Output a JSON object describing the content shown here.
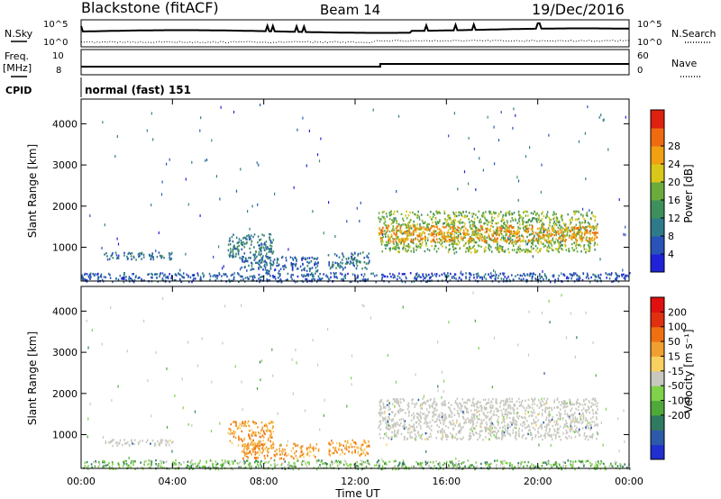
{
  "header": {
    "station": "Blackstone (fitACF)",
    "beam": "Beam 14",
    "date": "19/Dec/2016"
  },
  "status_panels": {
    "nsky_label": "N.Sky",
    "nsearch_label": "N.Search",
    "noise_ticks": [
      "10^5",
      "10^0"
    ],
    "freq_label_line1": "Freq.",
    "freq_label_line2": "[MHz]",
    "freq_ticks": [
      "10",
      "8"
    ],
    "nave_label": "Nave",
    "nave_ticks": [
      "60",
      "0"
    ],
    "cpid_label": "CPID",
    "cpid_value": "normal (fast) 151"
  },
  "chart_data": [
    {
      "type": "heatmap",
      "name": "power",
      "ylabel": "Slant Range [km]",
      "xlabel": "",
      "xlim": [
        0,
        24
      ],
      "ylim": [
        180,
        4600
      ],
      "yticks": [
        1000,
        2000,
        3000,
        4000
      ],
      "xticks": [
        0,
        4,
        8,
        12,
        16,
        20,
        24
      ],
      "colorbar_label": "Power [dB]",
      "colorbar_range": [
        0,
        32
      ],
      "colorbar_ticks": [
        "4",
        "8",
        "12",
        "16",
        "20",
        "24",
        "28"
      ],
      "colorbar_colors": [
        "#1f22d8",
        "#2a53b8",
        "#2f7a8a",
        "#3f8f5c",
        "#6aab3c",
        "#d8c81a",
        "#f0a010",
        "#f06a10",
        "#e02010"
      ],
      "echo_regions": [
        {
          "t0": 0.0,
          "t1": 24.0,
          "r0": 180,
          "r1": 400,
          "level": 6
        },
        {
          "t0": 1.0,
          "t1": 4.0,
          "r0": 720,
          "r1": 900,
          "level": 8
        },
        {
          "t0": 6.4,
          "t1": 8.4,
          "r0": 750,
          "r1": 1350,
          "level": 10
        },
        {
          "t0": 7.0,
          "t1": 10.4,
          "r0": 430,
          "r1": 800,
          "level": 7
        },
        {
          "t0": 10.8,
          "t1": 12.6,
          "r0": 500,
          "r1": 900,
          "level": 8
        },
        {
          "t0": 13.0,
          "t1": 22.6,
          "r0": 900,
          "r1": 1900,
          "level": 16
        },
        {
          "t0": 13.0,
          "t1": 22.6,
          "r0": 1150,
          "r1": 1550,
          "level": 24
        }
      ]
    },
    {
      "type": "heatmap",
      "name": "velocity",
      "ylabel": "Slant Range [km]",
      "xlabel": "Time UT",
      "xlim": [
        0,
        24
      ],
      "ylim": [
        180,
        4600
      ],
      "yticks": [
        1000,
        2000,
        3000,
        4000
      ],
      "xticks": [
        0,
        4,
        8,
        12,
        16,
        20,
        24
      ],
      "xticklabels": [
        "00:00",
        "04:00",
        "08:00",
        "12:00",
        "16:00",
        "20:00",
        "00:00"
      ],
      "colorbar_label": "Velocity [m s⁻¹]",
      "colorbar_ticks": [
        "200",
        "100",
        "50",
        "15",
        "-15",
        "-50",
        "-100",
        "-200"
      ],
      "colorbar_colors": [
        "#1f2fd0",
        "#2d5aa8",
        "#2f7a60",
        "#4fa83a",
        "#7fd24a",
        "#c8c8c0",
        "#f8d060",
        "#f0a030",
        "#f07010",
        "#e03010",
        "#e01010"
      ],
      "echo_regions": [
        {
          "t0": 0.0,
          "t1": 24.0,
          "r0": 180,
          "r1": 400,
          "level": "green"
        },
        {
          "t0": 1.0,
          "t1": 4.0,
          "r0": 750,
          "r1": 900,
          "level": "grey"
        },
        {
          "t0": 6.4,
          "t1": 8.4,
          "r0": 750,
          "r1": 1350,
          "level": "orange"
        },
        {
          "t0": 7.0,
          "t1": 10.4,
          "r0": 430,
          "r1": 800,
          "level": "orange"
        },
        {
          "t0": 10.8,
          "t1": 12.6,
          "r0": 500,
          "r1": 900,
          "level": "orange"
        },
        {
          "t0": 13.0,
          "t1": 22.6,
          "r0": 900,
          "r1": 1900,
          "level": "grey"
        }
      ]
    }
  ]
}
